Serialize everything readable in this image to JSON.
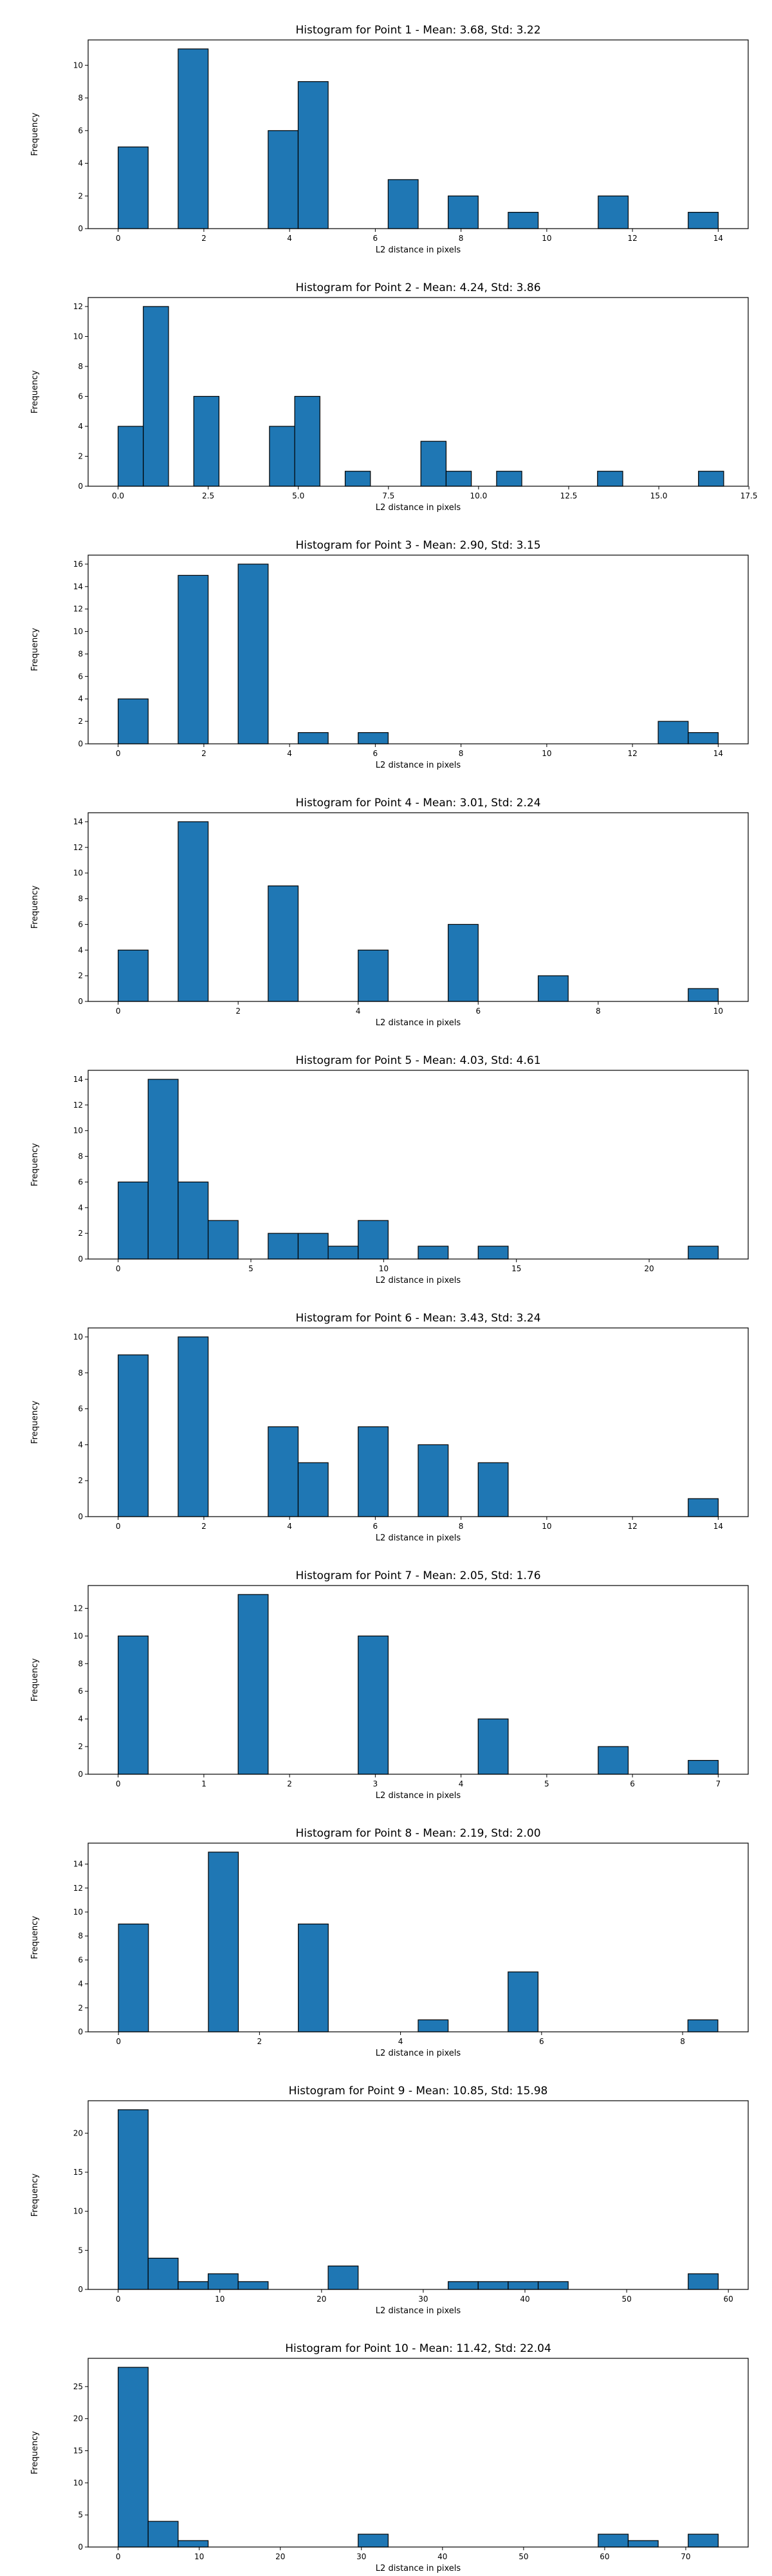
{
  "chart_data": [
    {
      "type": "bar",
      "title": "Histogram for Point 1 - Mean: 3.68, Std: 3.22",
      "xlabel": "L2 distance in pixels",
      "ylabel": "Frequency",
      "xlim": [
        -0.7,
        14.7
      ],
      "ylim": [
        0,
        11.55
      ],
      "xticks": [
        0,
        2,
        4,
        6,
        8,
        10,
        12,
        14
      ],
      "xtick_labels": [
        "0",
        "2",
        "4",
        "6",
        "8",
        "10",
        "12",
        "14"
      ],
      "yticks": [
        0,
        2,
        4,
        6,
        8,
        10
      ],
      "ytick_labels": [
        "0",
        "2",
        "4",
        "6",
        "8",
        "10"
      ],
      "bin_edges": [
        0,
        0.7,
        1.4,
        2.1,
        2.8,
        3.5,
        4.2,
        4.9,
        5.6,
        6.3,
        7.0,
        7.7,
        8.4,
        9.1,
        9.8,
        10.5,
        11.2,
        11.9,
        12.6,
        13.3,
        14.0
      ],
      "counts": [
        5,
        0,
        11,
        0,
        0,
        6,
        9,
        0,
        0,
        3,
        0,
        2,
        0,
        1,
        0,
        0,
        2,
        0,
        0,
        1
      ],
      "bar_color": "#1f77b4",
      "edge_color": "#000000",
      "grid": false
    },
    {
      "type": "bar",
      "title": "Histogram for Point 2 - Mean: 4.24, Std: 3.86",
      "xlabel": "L2 distance in pixels",
      "ylabel": "Frequency",
      "xlim": [
        -0.83,
        17.48
      ],
      "ylim": [
        0,
        12.6
      ],
      "xticks": [
        0,
        2.5,
        5,
        7.5,
        10,
        12.5,
        15,
        17.5
      ],
      "xtick_labels": [
        "0.0",
        "2.5",
        "5.0",
        "7.5",
        "10.0",
        "12.5",
        "15.0",
        "17.5"
      ],
      "yticks": [
        0,
        2,
        4,
        6,
        8,
        10,
        12
      ],
      "ytick_labels": [
        "0",
        "2",
        "4",
        "6",
        "8",
        "10",
        "12"
      ],
      "bin_edges": [
        0,
        0.7,
        1.4,
        2.1,
        2.8,
        3.5,
        4.2,
        4.9,
        5.6,
        6.3,
        7.0,
        7.7,
        8.4,
        9.1,
        9.8,
        10.5,
        11.2,
        11.9,
        12.6,
        13.3,
        14.0,
        14.7,
        15.4,
        16.1,
        16.8
      ],
      "counts": [
        4,
        12,
        0,
        6,
        0,
        0,
        4,
        6,
        0,
        1,
        0,
        0,
        3,
        1,
        0,
        1,
        0,
        0,
        0,
        1,
        0,
        0,
        0,
        1
      ],
      "bar_color": "#1f77b4",
      "edge_color": "#000000",
      "grid": false
    },
    {
      "type": "bar",
      "title": "Histogram for Point 3 - Mean: 2.90, Std: 3.15",
      "xlabel": "L2 distance in pixels",
      "ylabel": "Frequency",
      "xlim": [
        -0.7,
        14.7
      ],
      "ylim": [
        0,
        16.8
      ],
      "xticks": [
        0,
        2,
        4,
        6,
        8,
        10,
        12,
        14
      ],
      "xtick_labels": [
        "0",
        "2",
        "4",
        "6",
        "8",
        "10",
        "12",
        "14"
      ],
      "yticks": [
        0,
        2,
        4,
        6,
        8,
        10,
        12,
        14,
        16
      ],
      "ytick_labels": [
        "0",
        "2",
        "4",
        "6",
        "8",
        "10",
        "12",
        "14",
        "16"
      ],
      "bin_edges": [
        0,
        0.7,
        1.4,
        2.1,
        2.8,
        3.5,
        4.2,
        4.9,
        5.6,
        6.3,
        7.0,
        7.7,
        8.4,
        9.1,
        9.8,
        10.5,
        11.2,
        11.9,
        12.6,
        13.3,
        14.0
      ],
      "counts": [
        4,
        0,
        15,
        0,
        16,
        0,
        1,
        0,
        1,
        0,
        0,
        0,
        0,
        0,
        0,
        0,
        0,
        0,
        2,
        1
      ],
      "bar_color": "#1f77b4",
      "edge_color": "#000000",
      "grid": false
    },
    {
      "type": "bar",
      "title": "Histogram for Point 4 - Mean: 3.01, Std: 2.24",
      "xlabel": "L2 distance in pixels",
      "ylabel": "Frequency",
      "xlim": [
        -0.5,
        10.5
      ],
      "ylim": [
        0,
        14.7
      ],
      "xticks": [
        0,
        2,
        4,
        6,
        8,
        10
      ],
      "xtick_labels": [
        "0",
        "2",
        "4",
        "6",
        "8",
        "10"
      ],
      "yticks": [
        0,
        2,
        4,
        6,
        8,
        10,
        12,
        14
      ],
      "ytick_labels": [
        "0",
        "2",
        "4",
        "6",
        "8",
        "10",
        "12",
        "14"
      ],
      "bin_edges": [
        0,
        0.5,
        1.0,
        1.5,
        2.0,
        2.5,
        3.0,
        3.5,
        4.0,
        4.5,
        5.0,
        5.5,
        6.0,
        6.5,
        7.0,
        7.5,
        8.0,
        8.5,
        9.0,
        9.5,
        10.0
      ],
      "counts": [
        4,
        0,
        14,
        0,
        0,
        9,
        0,
        0,
        4,
        0,
        0,
        6,
        0,
        0,
        2,
        0,
        0,
        0,
        0,
        1
      ],
      "bar_color": "#1f77b4",
      "edge_color": "#000000",
      "grid": false
    },
    {
      "type": "bar",
      "title": "Histogram for Point 5 - Mean: 4.03, Std: 4.61",
      "xlabel": "L2 distance in pixels",
      "ylabel": "Frequency",
      "xlim": [
        -1.13,
        23.73
      ],
      "ylim": [
        0,
        14.7
      ],
      "xticks": [
        0,
        5,
        10,
        15,
        20
      ],
      "xtick_labels": [
        "0",
        "5",
        "10",
        "15",
        "20"
      ],
      "yticks": [
        0,
        2,
        4,
        6,
        8,
        10,
        12,
        14
      ],
      "ytick_labels": [
        "0",
        "2",
        "4",
        "6",
        "8",
        "10",
        "12",
        "14"
      ],
      "bin_edges": [
        0,
        1.13,
        2.26,
        3.39,
        4.52,
        5.65,
        6.78,
        7.91,
        9.04,
        10.17,
        11.3,
        12.43,
        13.56,
        14.69,
        15.82,
        16.95,
        18.08,
        19.21,
        20.34,
        21.47,
        22.6
      ],
      "counts": [
        6,
        14,
        6,
        3,
        0,
        2,
        2,
        1,
        3,
        0,
        1,
        0,
        1,
        0,
        0,
        0,
        0,
        0,
        0,
        1
      ],
      "bar_color": "#1f77b4",
      "edge_color": "#000000",
      "grid": false
    },
    {
      "type": "bar",
      "title": "Histogram for Point 6 - Mean: 3.43, Std: 3.24",
      "xlabel": "L2 distance in pixels",
      "ylabel": "Frequency",
      "xlim": [
        -0.7,
        14.7
      ],
      "ylim": [
        0,
        10.5
      ],
      "xticks": [
        0,
        2,
        4,
        6,
        8,
        10,
        12,
        14
      ],
      "xtick_labels": [
        "0",
        "2",
        "4",
        "6",
        "8",
        "10",
        "12",
        "14"
      ],
      "yticks": [
        0,
        2,
        4,
        6,
        8,
        10
      ],
      "ytick_labels": [
        "0",
        "2",
        "4",
        "6",
        "8",
        "10"
      ],
      "bin_edges": [
        0,
        0.7,
        1.4,
        2.1,
        2.8,
        3.5,
        4.2,
        4.9,
        5.6,
        6.3,
        7.0,
        7.7,
        8.4,
        9.1,
        9.8,
        10.5,
        11.2,
        11.9,
        12.6,
        13.3,
        14.0
      ],
      "counts": [
        9,
        0,
        10,
        0,
        0,
        5,
        3,
        0,
        5,
        0,
        4,
        0,
        3,
        0,
        0,
        0,
        0,
        0,
        0,
        1
      ],
      "bar_color": "#1f77b4",
      "edge_color": "#000000",
      "grid": false
    },
    {
      "type": "bar",
      "title": "Histogram for Point 7 - Mean: 2.05, Std: 1.76",
      "xlabel": "L2 distance in pixels",
      "ylabel": "Frequency",
      "xlim": [
        -0.35,
        7.35
      ],
      "ylim": [
        0,
        13.65
      ],
      "xticks": [
        0,
        1,
        2,
        3,
        4,
        5,
        6,
        7
      ],
      "xtick_labels": [
        "0",
        "1",
        "2",
        "3",
        "4",
        "5",
        "6",
        "7"
      ],
      "yticks": [
        0,
        2,
        4,
        6,
        8,
        10,
        12
      ],
      "ytick_labels": [
        "0",
        "2",
        "4",
        "6",
        "8",
        "10",
        "12"
      ],
      "bin_edges": [
        0,
        0.35,
        0.7,
        1.05,
        1.4,
        1.75,
        2.1,
        2.45,
        2.8,
        3.15,
        3.5,
        3.85,
        4.2,
        4.55,
        4.9,
        5.25,
        5.6,
        5.95,
        6.3,
        6.65,
        7.0
      ],
      "counts": [
        10,
        0,
        0,
        0,
        13,
        0,
        0,
        0,
        10,
        0,
        0,
        0,
        4,
        0,
        0,
        0,
        2,
        0,
        0,
        1
      ],
      "bar_color": "#1f77b4",
      "edge_color": "#000000",
      "grid": false
    },
    {
      "type": "bar",
      "title": "Histogram for Point 8 - Mean: 2.19, Std: 2.00",
      "xlabel": "L2 distance in pixels",
      "ylabel": "Frequency",
      "xlim": [
        -0.43,
        8.93
      ],
      "ylim": [
        0,
        15.75
      ],
      "xticks": [
        0,
        2,
        4,
        6,
        8
      ],
      "xtick_labels": [
        "0",
        "2",
        "4",
        "6",
        "8"
      ],
      "yticks": [
        0,
        2,
        4,
        6,
        8,
        10,
        12,
        14
      ],
      "ytick_labels": [
        "0",
        "2",
        "4",
        "6",
        "8",
        "10",
        "12",
        "14"
      ],
      "bin_edges": [
        0,
        0.425,
        0.85,
        1.275,
        1.7,
        2.125,
        2.55,
        2.975,
        3.4,
        3.825,
        4.25,
        4.675,
        5.1,
        5.525,
        5.95,
        6.375,
        6.8,
        7.225,
        7.65,
        8.075,
        8.5
      ],
      "counts": [
        9,
        0,
        0,
        15,
        0,
        0,
        9,
        0,
        0,
        0,
        1,
        0,
        0,
        5,
        0,
        0,
        0,
        0,
        0,
        1
      ],
      "bar_color": "#1f77b4",
      "edge_color": "#000000",
      "grid": false
    },
    {
      "type": "bar",
      "title": "Histogram for Point 9 - Mean: 10.85, Std: 15.98",
      "xlabel": "L2 distance in pixels",
      "ylabel": "Frequency",
      "xlim": [
        -2.95,
        61.95
      ],
      "ylim": [
        0,
        24.15
      ],
      "xticks": [
        0,
        10,
        20,
        30,
        40,
        50,
        60
      ],
      "xtick_labels": [
        "0",
        "10",
        "20",
        "30",
        "40",
        "50",
        "60"
      ],
      "yticks": [
        0,
        5,
        10,
        15,
        20
      ],
      "ytick_labels": [
        "0",
        "5",
        "10",
        "15",
        "20"
      ],
      "bin_edges": [
        0,
        2.95,
        5.9,
        8.85,
        11.8,
        14.75,
        17.7,
        20.65,
        23.6,
        26.55,
        29.5,
        32.45,
        35.4,
        38.35,
        41.3,
        44.25,
        47.2,
        50.15,
        53.1,
        56.05,
        59.0
      ],
      "counts": [
        23,
        4,
        1,
        2,
        1,
        0,
        0,
        3,
        0,
        0,
        0,
        1,
        1,
        1,
        1,
        0,
        0,
        0,
        0,
        2
      ],
      "bar_color": "#1f77b4",
      "edge_color": "#000000",
      "grid": false
    },
    {
      "type": "bar",
      "title": "Histogram for Point 10 - Mean: 11.42, Std: 22.04",
      "xlabel": "L2 distance in pixels",
      "ylabel": "Frequency",
      "xlim": [
        -3.7,
        77.7
      ],
      "ylim": [
        0,
        29.4
      ],
      "xticks": [
        0,
        10,
        20,
        30,
        40,
        50,
        60,
        70
      ],
      "xtick_labels": [
        "0",
        "10",
        "20",
        "30",
        "40",
        "50",
        "60",
        "70"
      ],
      "yticks": [
        0,
        5,
        10,
        15,
        20,
        25
      ],
      "ytick_labels": [
        "0",
        "5",
        "10",
        "15",
        "20",
        "25"
      ],
      "bin_edges": [
        0,
        3.7,
        7.4,
        11.1,
        14.8,
        18.5,
        22.2,
        25.9,
        29.6,
        33.3,
        37.0,
        40.7,
        44.4,
        48.1,
        51.8,
        55.5,
        59.2,
        62.9,
        66.6,
        70.3,
        74.0
      ],
      "counts": [
        28,
        4,
        1,
        0,
        0,
        0,
        0,
        0,
        2,
        0,
        0,
        0,
        0,
        0,
        0,
        0,
        2,
        1,
        0,
        2
      ],
      "bar_color": "#1f77b4",
      "edge_color": "#000000",
      "grid": false
    }
  ]
}
